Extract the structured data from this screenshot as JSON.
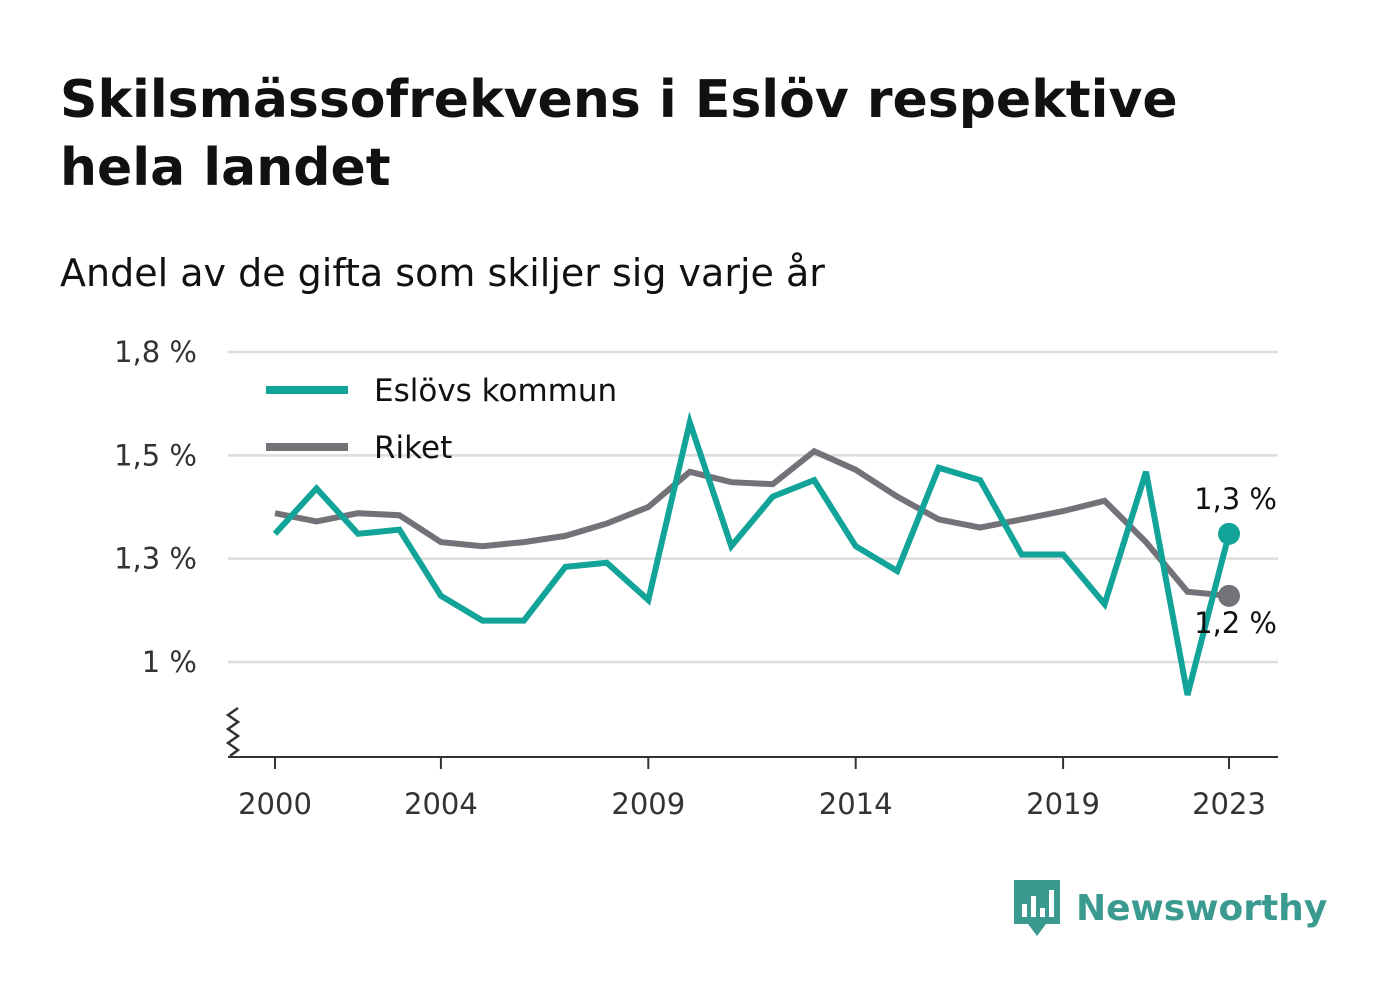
{
  "title": "Skilsmässofrekvens i Eslöv respektive hela landet",
  "subtitle": "Andel av de gifta som skiljer sig varje år",
  "brand": "Newsworthy",
  "colors": {
    "eslov": "#12a399",
    "riket": "#737278",
    "grid": "#dddddd",
    "axis": "#333333",
    "brand": "#3a9a8f"
  },
  "chart_data": {
    "type": "line",
    "title": "Skilsmässofrekvens i Eslöv respektive hela landet",
    "subtitle": "Andel av de gifta som skiljer sig varje år",
    "xlabel": "",
    "ylabel": "",
    "x": [
      2000,
      2001,
      2002,
      2003,
      2004,
      2005,
      2006,
      2007,
      2008,
      2009,
      2010,
      2011,
      2012,
      2013,
      2014,
      2015,
      2016,
      2017,
      2018,
      2019,
      2020,
      2021,
      2022,
      2023
    ],
    "x_ticks": [
      2000,
      2004,
      2009,
      2014,
      2019,
      2023
    ],
    "y_ticks": [
      {
        "value": 1.0,
        "label": "1 %"
      },
      {
        "value": 1.25,
        "label": "1,3 %"
      },
      {
        "value": 1.5,
        "label": "1,5 %"
      },
      {
        "value": 1.75,
        "label": "1,8 %"
      }
    ],
    "ylim": [
      0.77,
      1.75
    ],
    "y_axis_break": true,
    "grid": true,
    "legend_position": "top-left",
    "series": [
      {
        "name": "Eslövs kommun",
        "color": "#12a399",
        "values": [
          1.31,
          1.42,
          1.31,
          1.32,
          1.16,
          1.1,
          1.1,
          1.23,
          1.24,
          1.15,
          1.58,
          1.28,
          1.4,
          1.44,
          1.28,
          1.22,
          1.47,
          1.44,
          1.26,
          1.26,
          1.14,
          1.46,
          0.92,
          1.31
        ],
        "end_label": "1,3 %"
      },
      {
        "name": "Riket",
        "color": "#737278",
        "values": [
          1.36,
          1.34,
          1.36,
          1.355,
          1.29,
          1.28,
          1.29,
          1.305,
          1.335,
          1.375,
          1.46,
          1.435,
          1.43,
          1.51,
          1.465,
          1.4,
          1.345,
          1.325,
          1.345,
          1.365,
          1.39,
          1.29,
          1.17,
          1.16
        ],
        "end_label": "1,2 %"
      }
    ]
  }
}
